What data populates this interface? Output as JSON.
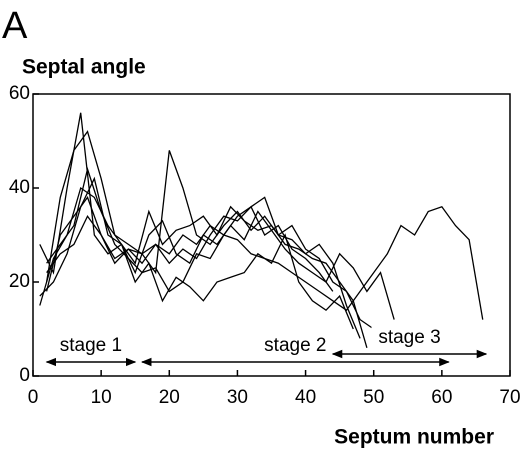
{
  "chart_data": {
    "type": "line",
    "panel_label": "A",
    "ylabel": "Septal angle",
    "xlabel": "Septum number",
    "xlim": [
      0,
      70
    ],
    "ylim": [
      0,
      60
    ],
    "xticks": [
      0,
      10,
      20,
      30,
      40,
      50,
      60,
      70
    ],
    "yticks": [
      0,
      20,
      40,
      60
    ],
    "color": "#000000",
    "annotations": [
      {
        "text": "stage 1",
        "x": [
          2,
          15
        ]
      },
      {
        "text": "stage 2",
        "x": [
          16,
          61
        ]
      },
      {
        "text": "stage 3",
        "x": [
          44,
          66.5
        ]
      }
    ],
    "series": [
      {
        "x": [
          2,
          4,
          6,
          8,
          10,
          12,
          14,
          16,
          18,
          20,
          22,
          24,
          26,
          28,
          30,
          32,
          34,
          36,
          38,
          40,
          42,
          44,
          46,
          48,
          50,
          52,
          54,
          56,
          58,
          60,
          62,
          64,
          66
        ],
        "values": [
          18,
          30,
          34,
          38,
          30,
          25,
          27,
          24,
          28,
          26,
          30,
          28,
          32,
          30,
          29,
          26,
          25,
          24,
          22,
          20,
          18,
          16,
          14,
          18,
          22,
          26,
          32,
          30,
          35,
          36,
          32,
          29,
          12
        ]
      },
      {
        "x": [
          1,
          3,
          5,
          7,
          9,
          11,
          13,
          15,
          17,
          19,
          21,
          23,
          25,
          27,
          29,
          31,
          33,
          35,
          37,
          39,
          41,
          43,
          45,
          47,
          49
        ],
        "values": [
          28,
          22,
          40,
          56,
          30,
          26,
          28,
          24,
          35,
          28,
          31,
          32,
          34,
          30,
          36,
          33,
          31,
          32,
          28,
          27,
          25,
          24,
          20,
          16,
          6
        ]
      },
      {
        "x": [
          2,
          4,
          6,
          8,
          10,
          12,
          14,
          16,
          18,
          20,
          22,
          24,
          26,
          28,
          30,
          32,
          34,
          36,
          38,
          40,
          42,
          44,
          46,
          48
        ],
        "values": [
          20,
          38,
          48,
          52,
          42,
          30,
          28,
          26,
          22,
          48,
          40,
          30,
          28,
          32,
          35,
          31,
          34,
          30,
          29,
          26,
          28,
          24,
          15,
          8
        ]
      },
      {
        "x": [
          1,
          3,
          5,
          7,
          9,
          11,
          13,
          15,
          17,
          19,
          21,
          23,
          25,
          27,
          29,
          31,
          33,
          35,
          37,
          39,
          41,
          43,
          45,
          47,
          49,
          51,
          53
        ],
        "values": [
          15,
          25,
          30,
          40,
          38,
          32,
          28,
          22,
          30,
          33,
          26,
          24,
          30,
          28,
          32,
          29,
          35,
          31,
          27,
          24,
          22,
          20,
          26,
          23,
          18,
          22,
          12
        ]
      },
      {
        "x": [
          2,
          4,
          6,
          8,
          10,
          12,
          14,
          16,
          18,
          20,
          22,
          24,
          26,
          28,
          30,
          32,
          34,
          36,
          38,
          40,
          42,
          44,
          46,
          48,
          50
        ],
        "values": [
          24,
          28,
          32,
          44,
          35,
          28,
          25,
          22,
          23,
          18,
          20,
          26,
          25,
          30,
          34,
          36,
          38,
          30,
          32,
          27,
          25,
          20,
          18,
          12,
          10
        ]
      },
      {
        "x": [
          1,
          3,
          5,
          7,
          9,
          11,
          13,
          15,
          17,
          19,
          21,
          23,
          25,
          27,
          29,
          31,
          33,
          35,
          37,
          39,
          41,
          43,
          45,
          47
        ],
        "values": [
          17,
          20,
          26,
          36,
          42,
          30,
          28,
          20,
          24,
          16,
          21,
          19,
          16,
          20,
          21,
          22,
          26,
          24,
          30,
          20,
          16,
          14,
          17,
          10
        ]
      },
      {
        "x": [
          2,
          4,
          6,
          8,
          10,
          12,
          14,
          16,
          18,
          20,
          22,
          24,
          26,
          28,
          30,
          32,
          34,
          36,
          38,
          40,
          42,
          44
        ],
        "values": [
          22,
          26,
          28,
          34,
          30,
          24,
          27,
          26,
          28,
          24,
          27,
          25,
          30,
          34,
          33,
          36,
          30,
          32,
          27,
          25,
          22,
          18
        ]
      }
    ]
  }
}
